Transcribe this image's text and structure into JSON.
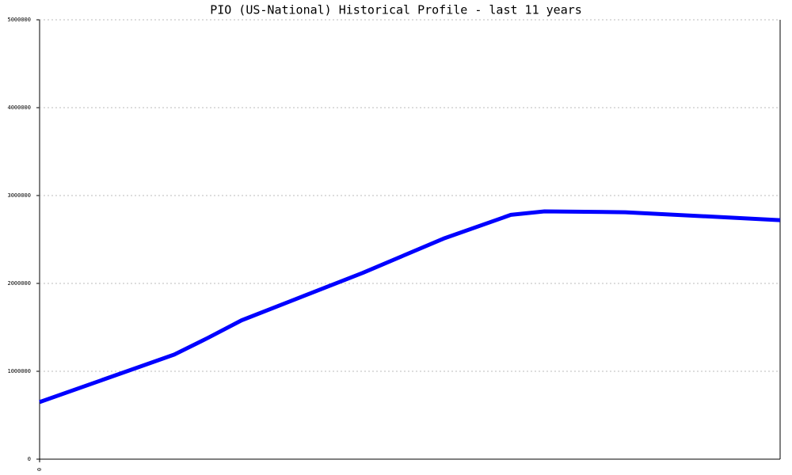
{
  "chart_data": {
    "type": "line",
    "title": "PIO (US-National) Historical Profile - last 11 years",
    "x": [
      0,
      2.0,
      2.5,
      3.0,
      3.7,
      4.8,
      6.0,
      7.0,
      7.5,
      8.7,
      11
    ],
    "series": [
      {
        "name": "PIO",
        "color": "#0000ff",
        "values": [
          650000,
          1190000,
          1380000,
          1580000,
          1790000,
          2120000,
          2510000,
          2780000,
          2820000,
          2810000,
          2720000
        ]
      }
    ],
    "xlim": [
      0,
      11
    ],
    "xticks": [
      0
    ],
    "ylim": [
      0,
      5000000
    ],
    "yticks": [
      0,
      1000000,
      2000000,
      3000000,
      4000000,
      5000000
    ],
    "grid": true
  }
}
